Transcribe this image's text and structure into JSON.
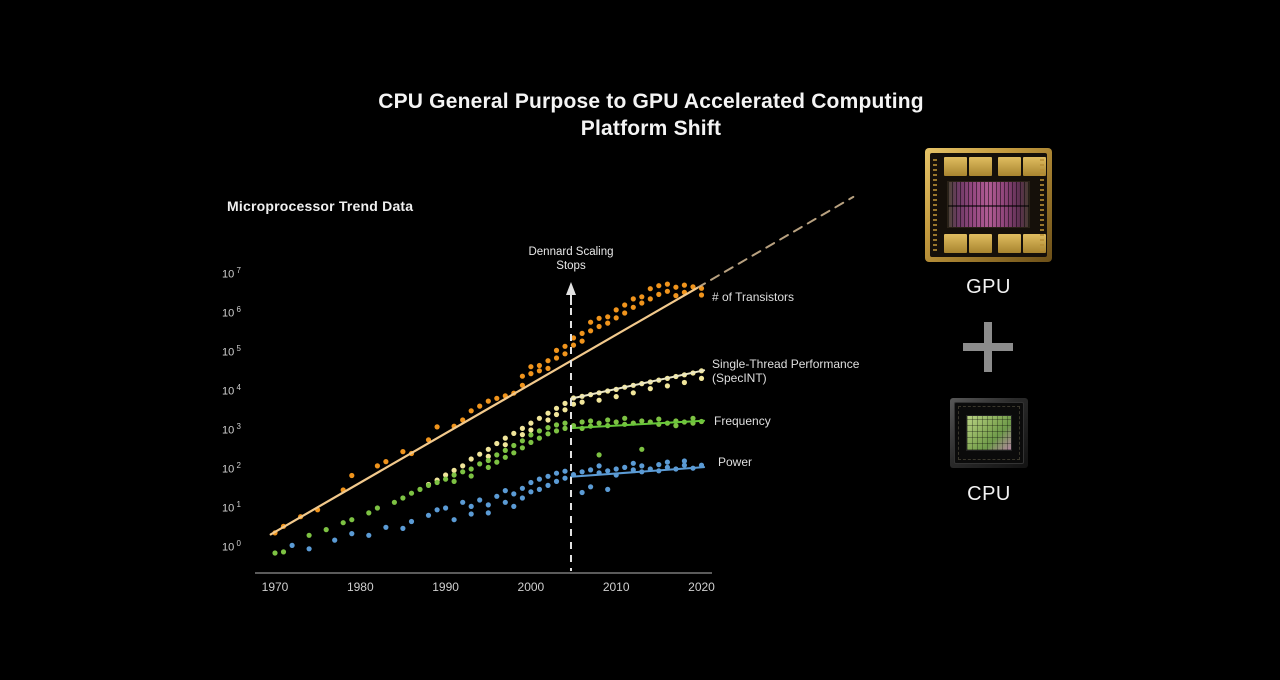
{
  "title": {
    "line1": "CPU General Purpose to GPU Accelerated Computing",
    "line2": "Platform Shift"
  },
  "chart_label": "Microprocessor Trend Data",
  "annotation": {
    "line1": "Dennard Scaling",
    "line2": "Stops",
    "year": 2004.7
  },
  "right_panel": {
    "gpu_label": "GPU",
    "cpu_label": "CPU"
  },
  "colors": {
    "background": "#000000",
    "axis_line": "#5B5B5B",
    "tick_text": "#CFCFCF",
    "dennard_line": "#E3E3E3",
    "transistors": "#F0941C",
    "transistors_trend": "#F2C98C",
    "transistors_projection": "#D9BE97",
    "singlethread": "#F0E59A",
    "singlethread_trend": "#ECE7C4",
    "frequency": "#7DC243",
    "frequency_trend": "#67C639",
    "power": "#5B9BD5",
    "power_trend": "#5B9BD5"
  },
  "chart_data": {
    "type": "scatter",
    "title": "Microprocessor Trend Data",
    "xlabel": "",
    "ylabel": "",
    "grid": false,
    "x_axis": {
      "ticks": [
        1970,
        1980,
        1990,
        2000,
        2010,
        2020
      ],
      "min": 1967.6,
      "max": 2021
    },
    "y_axis": {
      "scale": "log10",
      "tick_exponents": [
        7,
        6,
        5,
        4,
        3,
        2,
        1,
        0
      ],
      "min_exp": 0,
      "max_exp": 7
    },
    "series": [
      {
        "name": "transistors",
        "label": "# of Transistors",
        "color": "#F0941C",
        "points": [
          [
            1970,
            2.3
          ],
          [
            1971,
            3.4
          ],
          [
            1973,
            6
          ],
          [
            1975,
            9
          ],
          [
            1978,
            29
          ],
          [
            1979,
            68
          ],
          [
            1982,
            120
          ],
          [
            1983,
            155
          ],
          [
            1985,
            280
          ],
          [
            1986,
            250
          ],
          [
            1988,
            560
          ],
          [
            1989,
            1200
          ],
          [
            1991,
            1250
          ],
          [
            1992,
            1800
          ],
          [
            1993,
            3100
          ],
          [
            1994,
            4100
          ],
          [
            1995,
            5500
          ],
          [
            1996,
            6500
          ],
          [
            1997,
            7500
          ],
          [
            1998,
            8800
          ],
          [
            1999,
            14000
          ],
          [
            1999,
            24000
          ],
          [
            2000,
            42000
          ],
          [
            2000,
            28000
          ],
          [
            2001,
            45000
          ],
          [
            2001,
            33000
          ],
          [
            2002,
            60000
          ],
          [
            2002,
            38000
          ],
          [
            2003,
            110000
          ],
          [
            2003,
            70000
          ],
          [
            2004,
            140000
          ],
          [
            2004,
            90000
          ],
          [
            2005,
            230000
          ],
          [
            2005,
            150000
          ],
          [
            2006,
            300000
          ],
          [
            2006,
            190000
          ],
          [
            2007,
            580000
          ],
          [
            2007,
            350000
          ],
          [
            2008,
            730000
          ],
          [
            2008,
            450000
          ],
          [
            2009,
            800000
          ],
          [
            2009,
            550000
          ],
          [
            2010,
            1200000
          ],
          [
            2010,
            750000
          ],
          [
            2011,
            1600000
          ],
          [
            2011,
            1000000
          ],
          [
            2012,
            2300000
          ],
          [
            2012,
            1400000
          ],
          [
            2013,
            2600000
          ],
          [
            2013,
            1800000
          ],
          [
            2014,
            4200000
          ],
          [
            2014,
            2300000
          ],
          [
            2015,
            5000000
          ],
          [
            2015,
            3000000
          ],
          [
            2016,
            5500000
          ],
          [
            2016,
            3600000
          ],
          [
            2017,
            4600000
          ],
          [
            2017,
            2800000
          ],
          [
            2018,
            5200000
          ],
          [
            2018,
            3400000
          ],
          [
            2019,
            4700000
          ],
          [
            2020,
            4300000
          ],
          [
            2020,
            2900000
          ]
        ]
      },
      {
        "name": "singlethread",
        "label_line1": "Single-Thread Performance",
        "label_line2": "(SpecINT)",
        "color": "#F0E59A",
        "points": [
          [
            1988,
            40
          ],
          [
            1989,
            52
          ],
          [
            1990,
            70
          ],
          [
            1991,
            92
          ],
          [
            1992,
            120
          ],
          [
            1993,
            180
          ],
          [
            1994,
            240
          ],
          [
            1995,
            320
          ],
          [
            1995,
            210
          ],
          [
            1996,
            450
          ],
          [
            1997,
            620
          ],
          [
            1997,
            420
          ],
          [
            1998,
            820
          ],
          [
            1999,
            1100
          ],
          [
            1999,
            760
          ],
          [
            2000,
            1500
          ],
          [
            2000,
            1000
          ],
          [
            2001,
            2000
          ],
          [
            2002,
            2700
          ],
          [
            2002,
            1800
          ],
          [
            2003,
            3600
          ],
          [
            2003,
            2500
          ],
          [
            2004,
            4800
          ],
          [
            2004,
            3300
          ],
          [
            2005,
            6600
          ],
          [
            2005,
            4600
          ],
          [
            2006,
            7300
          ],
          [
            2006,
            5200
          ],
          [
            2007,
            8100
          ],
          [
            2008,
            9000
          ],
          [
            2008,
            5800
          ],
          [
            2009,
            10000
          ],
          [
            2010,
            11000
          ],
          [
            2010,
            7200
          ],
          [
            2011,
            12500
          ],
          [
            2012,
            14000
          ],
          [
            2012,
            9000
          ],
          [
            2013,
            15500
          ],
          [
            2014,
            17000
          ],
          [
            2014,
            11500
          ],
          [
            2015,
            19000
          ],
          [
            2016,
            21000
          ],
          [
            2016,
            13500
          ],
          [
            2017,
            23500
          ],
          [
            2018,
            26000
          ],
          [
            2018,
            16500
          ],
          [
            2019,
            29000
          ],
          [
            2020,
            33000
          ],
          [
            2020,
            21000
          ]
        ]
      },
      {
        "name": "frequency",
        "label": "Frequency",
        "color": "#7DC243",
        "points": [
          [
            1970,
            0.7
          ],
          [
            1971,
            0.75
          ],
          [
            1974,
            2
          ],
          [
            1976,
            2.8
          ],
          [
            1978,
            4.2
          ],
          [
            1979,
            5
          ],
          [
            1981,
            7.5
          ],
          [
            1982,
            10
          ],
          [
            1984,
            14
          ],
          [
            1985,
            18
          ],
          [
            1986,
            24
          ],
          [
            1987,
            30
          ],
          [
            1988,
            38
          ],
          [
            1989,
            45
          ],
          [
            1990,
            55
          ],
          [
            1991,
            70
          ],
          [
            1991,
            48
          ],
          [
            1992,
            85
          ],
          [
            1993,
            100
          ],
          [
            1993,
            66
          ],
          [
            1994,
            135
          ],
          [
            1995,
            165
          ],
          [
            1995,
            110
          ],
          [
            1996,
            230
          ],
          [
            1996,
            150
          ],
          [
            1997,
            300
          ],
          [
            1997,
            200
          ],
          [
            1998,
            400
          ],
          [
            1998,
            260
          ],
          [
            1999,
            530
          ],
          [
            1999,
            350
          ],
          [
            2000,
            750
          ],
          [
            2000,
            480
          ],
          [
            2001,
            950
          ],
          [
            2001,
            620
          ],
          [
            2002,
            1150
          ],
          [
            2002,
            800
          ],
          [
            2003,
            1350
          ],
          [
            2003,
            950
          ],
          [
            2004,
            1500
          ],
          [
            2004,
            1100
          ],
          [
            2005,
            1300
          ],
          [
            2006,
            1600
          ],
          [
            2006,
            1100
          ],
          [
            2007,
            1700
          ],
          [
            2007,
            1250
          ],
          [
            2008,
            1500
          ],
          [
            2008,
            230
          ],
          [
            2009,
            1800
          ],
          [
            2009,
            1300
          ],
          [
            2010,
            1600
          ],
          [
            2011,
            1400
          ],
          [
            2011,
            2000
          ],
          [
            2012,
            1500
          ],
          [
            2013,
            1700
          ],
          [
            2013,
            320
          ],
          [
            2014,
            1600
          ],
          [
            2015,
            1400
          ],
          [
            2015,
            1900
          ],
          [
            2016,
            1500
          ],
          [
            2017,
            1700
          ],
          [
            2017,
            1300
          ],
          [
            2018,
            1600
          ],
          [
            2019,
            1500
          ],
          [
            2019,
            2000
          ],
          [
            2020,
            1650
          ]
        ]
      },
      {
        "name": "power",
        "label": "Power",
        "color": "#5B9BD5",
        "points": [
          [
            1972,
            1.1
          ],
          [
            1974,
            0.9
          ],
          [
            1977,
            1.5
          ],
          [
            1979,
            2.2
          ],
          [
            1981,
            2.0
          ],
          [
            1983,
            3.2
          ],
          [
            1985,
            3.0
          ],
          [
            1986,
            4.5
          ],
          [
            1988,
            6.5
          ],
          [
            1989,
            9
          ],
          [
            1990,
            10
          ],
          [
            1991,
            5
          ],
          [
            1992,
            14
          ],
          [
            1993,
            11
          ],
          [
            1993,
            7
          ],
          [
            1994,
            16
          ],
          [
            1995,
            12
          ],
          [
            1995,
            7.5
          ],
          [
            1996,
            20
          ],
          [
            1997,
            28
          ],
          [
            1997,
            14
          ],
          [
            1998,
            23
          ],
          [
            1998,
            11
          ],
          [
            1999,
            32
          ],
          [
            1999,
            18
          ],
          [
            2000,
            45
          ],
          [
            2000,
            26
          ],
          [
            2001,
            55
          ],
          [
            2001,
            30
          ],
          [
            2002,
            65
          ],
          [
            2002,
            38
          ],
          [
            2003,
            78
          ],
          [
            2003,
            48
          ],
          [
            2004,
            88
          ],
          [
            2004,
            58
          ],
          [
            2005,
            72
          ],
          [
            2006,
            85
          ],
          [
            2006,
            25
          ],
          [
            2007,
            95
          ],
          [
            2007,
            35
          ],
          [
            2008,
            80
          ],
          [
            2008,
            120
          ],
          [
            2009,
            90
          ],
          [
            2009,
            30
          ],
          [
            2010,
            100
          ],
          [
            2010,
            70
          ],
          [
            2011,
            110
          ],
          [
            2012,
            95
          ],
          [
            2012,
            140
          ],
          [
            2013,
            120
          ],
          [
            2013,
            85
          ],
          [
            2014,
            100
          ],
          [
            2015,
            130
          ],
          [
            2015,
            90
          ],
          [
            2016,
            110
          ],
          [
            2016,
            150
          ],
          [
            2017,
            100
          ],
          [
            2018,
            125
          ],
          [
            2018,
            160
          ],
          [
            2019,
            105
          ],
          [
            2020,
            125
          ]
        ]
      }
    ],
    "trend_lines": [
      {
        "series": "transistors",
        "style": "solid",
        "color": "#F2C98C",
        "width": 2.2,
        "opacity": 1,
        "from": [
          1969.5,
          2.1
        ],
        "to": [
          2019.5,
          4400000
        ]
      },
      {
        "series": "transistors-projection",
        "style": "dashed",
        "dash": "9 7",
        "color": "#D9BE97",
        "width": 2,
        "opacity": 0.85,
        "from": [
          2019.5,
          4400000
        ],
        "to": [
          2037.8,
          950000000
        ]
      },
      {
        "series": "singlethread",
        "style": "solid",
        "color": "#ECE7C4",
        "width": 2,
        "opacity": 1,
        "from": [
          2004.7,
          6400
        ],
        "to": [
          2020.3,
          34000
        ]
      },
      {
        "series": "frequency",
        "style": "solid",
        "color": "#67C639",
        "width": 2,
        "opacity": 1,
        "from": [
          2004.7,
          1120
        ],
        "to": [
          2020.3,
          1730
        ]
      },
      {
        "series": "power",
        "style": "solid",
        "color": "#5B9BD5",
        "width": 2,
        "opacity": 1,
        "from": [
          2004.7,
          63
        ],
        "to": [
          2020.3,
          112
        ]
      }
    ]
  }
}
